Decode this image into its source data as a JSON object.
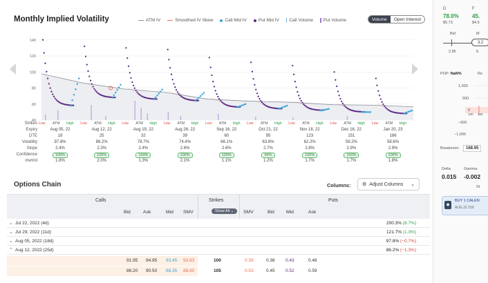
{
  "chart": {
    "title": "Monthly Implied Volatility",
    "legend": [
      {
        "label": "ATM IV",
        "kind": "line",
        "color": "#8a8f98"
      },
      {
        "label": "Smoothed IV Skew",
        "kind": "line",
        "color": "#e86d5a"
      },
      {
        "label": "Call Mid IV",
        "kind": "dot",
        "color": "#3ba4d8"
      },
      {
        "label": "Put Mid IV",
        "kind": "dot",
        "color": "#5b2a86"
      },
      {
        "label": "Call Volume",
        "kind": "bar",
        "color": "#7fb7e0"
      },
      {
        "label": "Put Volume",
        "kind": "bar",
        "color": "#9b79c9"
      }
    ],
    "toggle": {
      "on": "Volume",
      "off": "Open Interest"
    },
    "y_ticks": [
      "140",
      "120",
      "100",
      "80",
      "60",
      "40"
    ],
    "strike_sublabels": [
      "Low",
      "ATM",
      "High"
    ]
  },
  "chart_data": {
    "type": "scatter",
    "title": "Monthly Implied Volatility",
    "ylim": [
      40,
      145
    ],
    "y_ticks": [
      40,
      60,
      80,
      100,
      120,
      140
    ],
    "categories": [
      "Aug 05, 22",
      "Aug 12, 22",
      "Aug 19, 22",
      "Aug 26, 22",
      "Sep 16, 22",
      "Oct 21, 22",
      "Nov 18, 22",
      "Dec 16, 22",
      "Jan 20, 23"
    ],
    "series": [
      {
        "name": "ATM IV",
        "values": [
          97.8,
          86.2,
          78.7,
          74.4,
          66.1,
          63.6,
          62.2,
          59.2,
          58.6
        ]
      },
      {
        "name": "Put Mid IV",
        "start_values": [
          140,
          132,
          130,
          128,
          118,
          112,
          108,
          100,
          92
        ],
        "min_values": [
          58,
          68,
          66,
          64,
          56,
          54,
          52,
          50,
          48
        ]
      },
      {
        "name": "Call Mid IV",
        "end_values": [
          92,
          84,
          78,
          74,
          60,
          58,
          54,
          50,
          52
        ]
      }
    ]
  },
  "expiry_table": {
    "row_labels": [
      "Strikes",
      "Expiry",
      "DTE",
      "Volatility",
      "Slope",
      "Confidence",
      "mwVol"
    ],
    "expiries": [
      {
        "expiry": "Aug 05, 22",
        "dte": "18",
        "volatility": "97.8%",
        "slope": "2.4%",
        "confidence": "100%",
        "mwvol": "1.8%"
      },
      {
        "expiry": "Aug 12, 22",
        "dte": "25",
        "volatility": "86.2%",
        "slope": "2.3%",
        "confidence": "100%",
        "mwvol": "2.0%"
      },
      {
        "expiry": "Aug 19, 22",
        "dte": "32",
        "volatility": "78.7%",
        "slope": "2.4%",
        "confidence": "100%",
        "mwvol": "1.3%"
      },
      {
        "expiry": "Aug 26, 22",
        "dte": "39",
        "volatility": "74.4%",
        "slope": "2.6%",
        "confidence": "100%",
        "mwvol": "2.1%"
      },
      {
        "expiry": "Sep 16, 22",
        "dte": "60",
        "volatility": "66.1%",
        "slope": "2.6%",
        "confidence": "100%",
        "mwvol": "1.1%"
      },
      {
        "expiry": "Oct 21, 22",
        "dte": "95",
        "volatility": "63.6%",
        "slope": "2.7%",
        "confidence": "94%",
        "mwvol": "1.2%"
      },
      {
        "expiry": "Nov 18, 22",
        "dte": "123",
        "volatility": "62.2%",
        "slope": "2.8%",
        "confidence": "100%",
        "mwvol": "1.7%"
      },
      {
        "expiry": "Dec 16, 22",
        "dte": "151",
        "volatility": "59.2%",
        "slope": "2.9%",
        "confidence": "100%",
        "mwvol": "1.7%"
      },
      {
        "expiry": "Jan 20, 23",
        "dte": "186",
        "volatility": "58.6%",
        "slope": "2.9%",
        "confidence": "100%",
        "mwvol": "1.8%"
      }
    ]
  },
  "options_chain": {
    "title": "Options Chain",
    "columns_label": "Columns:",
    "adjust_label": "Adjust Columns",
    "groups": {
      "calls": "Calls",
      "strikes": "Strikes",
      "puts": "Puts"
    },
    "call_cols": [
      "Bid",
      "Ask",
      "Mid",
      "SMV"
    ],
    "put_cols": [
      "SMV",
      "Bid",
      "Mid",
      "Ask"
    ],
    "show_all": "Show All",
    "expiries": [
      {
        "label": "Jul 22, 2022 (4d)",
        "iv": "200.3%",
        "chg": "(8.7%)",
        "dir": "up",
        "open": false
      },
      {
        "label": "Jul 29, 2022 (11d)",
        "iv": "121.7%",
        "chg": "(1.3%)",
        "dir": "up",
        "open": false
      },
      {
        "label": "Aug 05, 2022 (18d)",
        "iv": "97.8%",
        "chg": "(−0.7%)",
        "dir": "dn",
        "open": false
      },
      {
        "label": "Aug 12, 2022 (25d)",
        "iv": "86.2%",
        "chg": "(−1.3%)",
        "dir": "dn",
        "open": true
      }
    ],
    "rows": [
      {
        "call_bid": "91.95",
        "call_ask": "94.95",
        "call_mid": "93.45",
        "call_smv": "93.83",
        "strike": "100",
        "put_smv": "0.39",
        "put_bid": "0.38",
        "put_mid": "0.43",
        "put_ask": "0.48"
      },
      {
        "call_bid": "86.20",
        "call_ask": "90.50",
        "call_mid": "88.35",
        "call_smv": "88.90",
        "strike": "105",
        "put_smv": "0.53",
        "put_bid": "0.45",
        "put_mid": "0.52",
        "put_ask": "0.59"
      }
    ]
  },
  "right_panel": {
    "col_d": "D",
    "col_f": "F",
    "pct_d": "78.0%",
    "pct_f": "45.",
    "price_d": "$5.73",
    "price_f": "$4.6",
    "bid_label": "Bid",
    "bid_right": "M",
    "knob": "3.2",
    "slider_lo": "2.85",
    "slider_hi": "6.",
    "pop_label": "POP:",
    "pop_value": "NaN%",
    "pop_right": "Re",
    "axis": [
      "1,000",
      "500",
      "0",
      "−500",
      "−1,000"
    ],
    "mini_labels": [
      "100",
      "125"
    ],
    "breakeven_label": "Breakeven:",
    "breakeven_value": "168.95",
    "delta_label": "Delta",
    "delta_value": "0.015",
    "gamma_label": "Gamma",
    "gamma_value": "-0.002",
    "st_label": "St",
    "order_line1": "BUY 1 CALEN",
    "order_line2": "AUG 22 150"
  }
}
